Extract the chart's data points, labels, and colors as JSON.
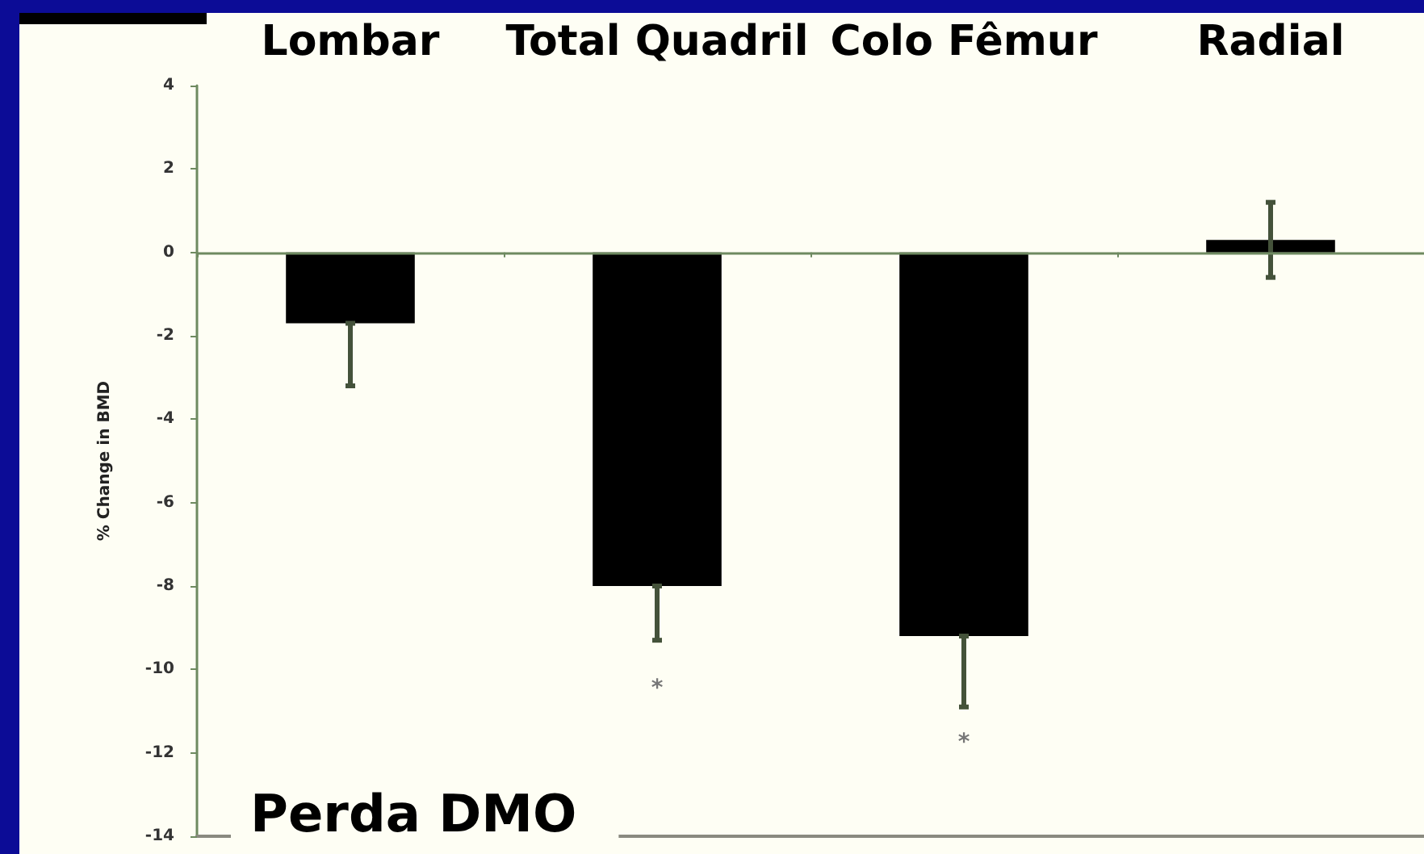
{
  "chart_data": {
    "type": "bar",
    "title": "Perda DMO",
    "ylabel": "% Change in BMD",
    "categories": [
      "Lombar",
      "Total Quadril",
      "Colo Fêmur",
      "Radial"
    ],
    "values": [
      -1.7,
      -8.0,
      -9.2,
      0.3
    ],
    "color": "#000000",
    "errors": [
      [
        -3.2,
        -1.7
      ],
      [
        -9.3,
        -8.0
      ],
      [
        -10.9,
        -9.2
      ],
      0.9
    ],
    "ylim": [
      -14,
      4
    ],
    "yticks": [
      4,
      2,
      0,
      -2,
      -4,
      -6,
      -8,
      -10,
      -12,
      -14
    ],
    "ref_lines": [
      {
        "axis": "y",
        "value": 0,
        "color": "#6e8a60"
      }
    ],
    "annotations": [
      "*",
      "*"
    ]
  }
}
